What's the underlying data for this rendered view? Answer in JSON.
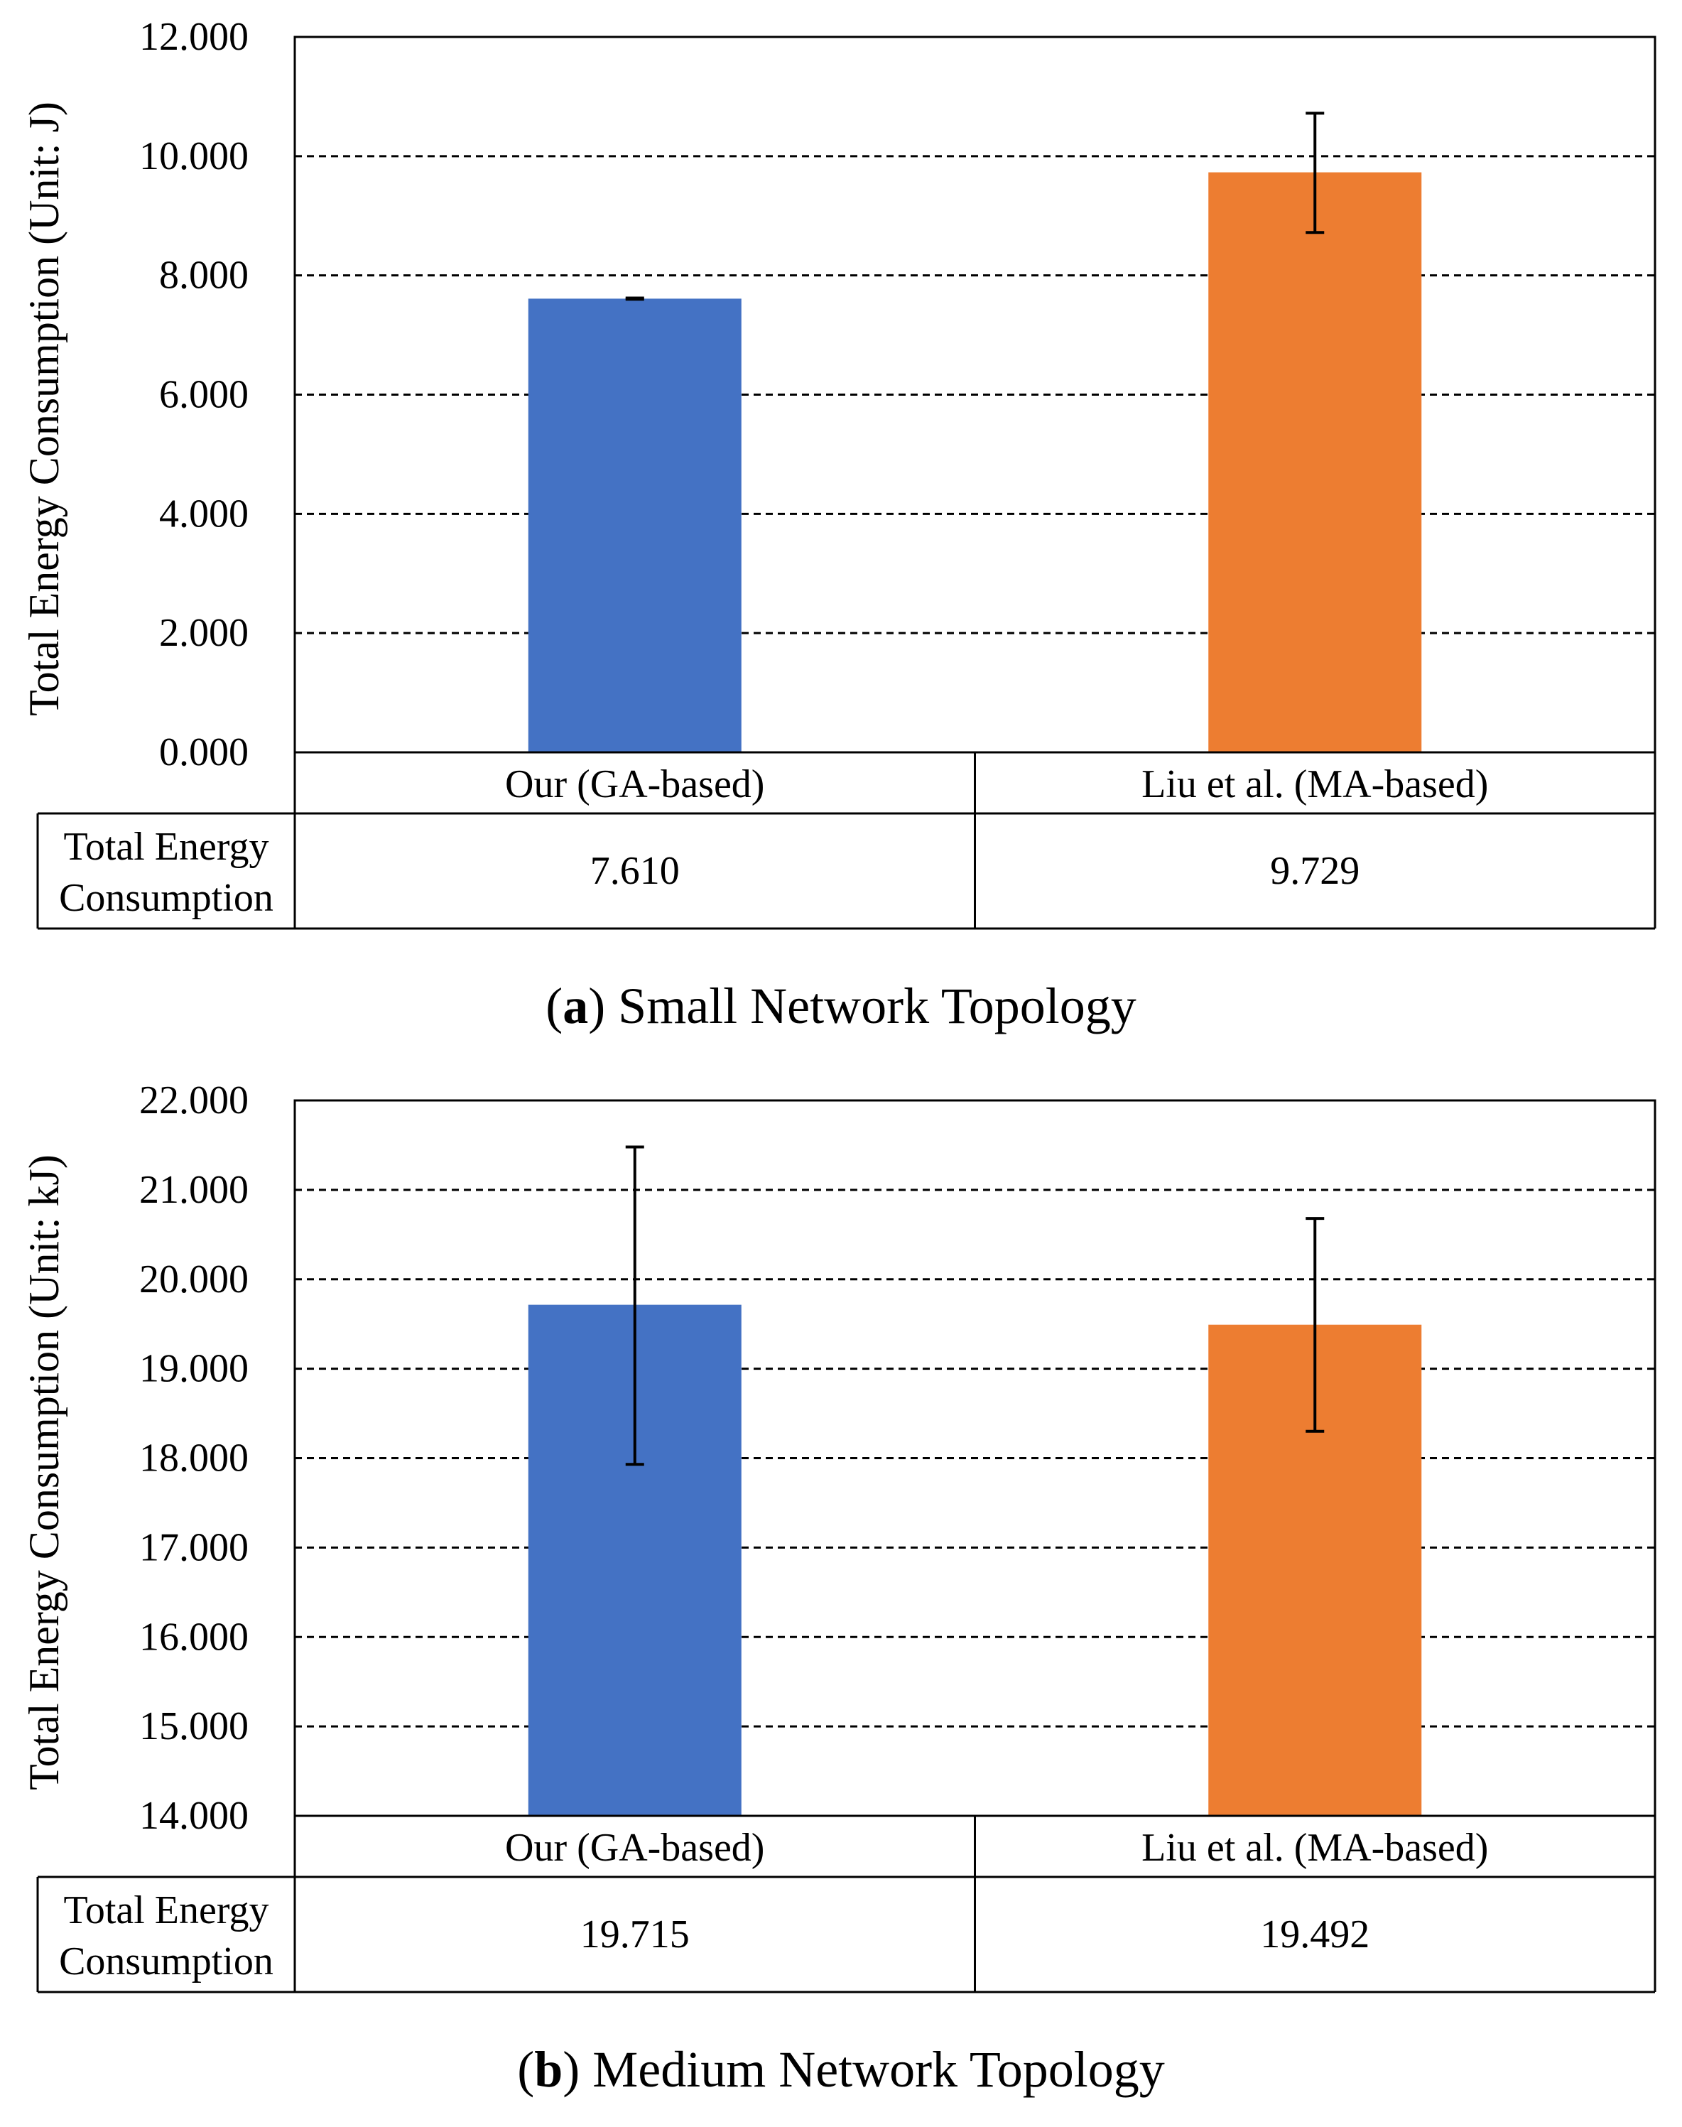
{
  "chart_data": [
    {
      "type": "bar",
      "panel_letter": "a",
      "caption_text": " Small Network Topology",
      "ylabel": "Total Energy Consumption (Unit: J)",
      "ylim": [
        0,
        12
      ],
      "yticks": [
        0,
        2,
        4,
        6,
        8,
        10,
        12
      ],
      "ytick_labels": [
        "0.000",
        "2.000",
        "4.000",
        "6.000",
        "8.000",
        "10.000",
        "12.000"
      ],
      "grid": "dashed horizontal",
      "categories": [
        "Our (GA-based)",
        "Liu et al. (MA-based)"
      ],
      "values": [
        7.61,
        9.729
      ],
      "error_low": [
        7.6,
        8.72
      ],
      "error_high": [
        7.62,
        10.72
      ],
      "colors": [
        "#4472C4",
        "#ED7D31"
      ],
      "table": {
        "row_label_line1": "Total Energy",
        "row_label_line2": "Consumption",
        "cells": [
          "7.610",
          "9.729"
        ]
      }
    },
    {
      "type": "bar",
      "panel_letter": "b",
      "caption_text": " Medium Network Topology",
      "ylabel": "Total Energy Consumption (Unit: kJ)",
      "ylim": [
        14,
        22
      ],
      "yticks": [
        14,
        15,
        16,
        17,
        18,
        19,
        20,
        21,
        22
      ],
      "ytick_labels": [
        "14.000",
        "15.000",
        "16.000",
        "17.000",
        "18.000",
        "19.000",
        "20.000",
        "21.000",
        "22.000"
      ],
      "grid": "dashed horizontal",
      "categories": [
        "Our (GA-based)",
        "Liu et al. (MA-based)"
      ],
      "values": [
        19.715,
        19.492
      ],
      "error_low": [
        17.93,
        18.3
      ],
      "error_high": [
        21.48,
        20.68
      ],
      "colors": [
        "#4472C4",
        "#ED7D31"
      ],
      "table": {
        "row_label_line1": "Total Energy",
        "row_label_line2": "Consumption",
        "cells": [
          "19.715",
          "19.492"
        ]
      }
    }
  ]
}
